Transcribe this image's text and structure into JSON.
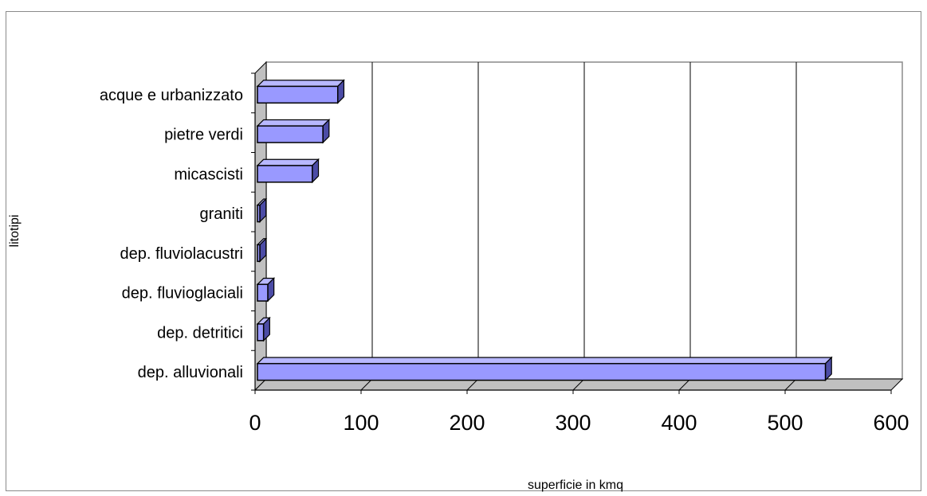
{
  "chart_data": {
    "type": "bar",
    "orientation": "horizontal",
    "three_d": true,
    "title": "",
    "xlabel": "superficie in kmq",
    "ylabel": "litotipi",
    "xlim": [
      0,
      600
    ],
    "x_ticks": [
      0,
      100,
      200,
      300,
      400,
      500,
      600
    ],
    "grid": "vertical",
    "legend": "none",
    "categories": [
      "acque e urbanizzato",
      "pietre verdi",
      "micascisti",
      "graniti",
      "dep. fluviolacustri",
      "dep. fluvioglaciali",
      "dep. detritici",
      "dep. alluvionali"
    ],
    "values": [
      78,
      64,
      54,
      3,
      1,
      12,
      8,
      538
    ],
    "colors": {
      "bar_front": "#9999ff",
      "bar_top": "#b8b8ff",
      "bar_side": "#4c4ca6",
      "back_wall": "#ffffff",
      "side_wall": "#c0c0c0",
      "floor": "#c0c0c0",
      "gridline": "#000000"
    }
  }
}
